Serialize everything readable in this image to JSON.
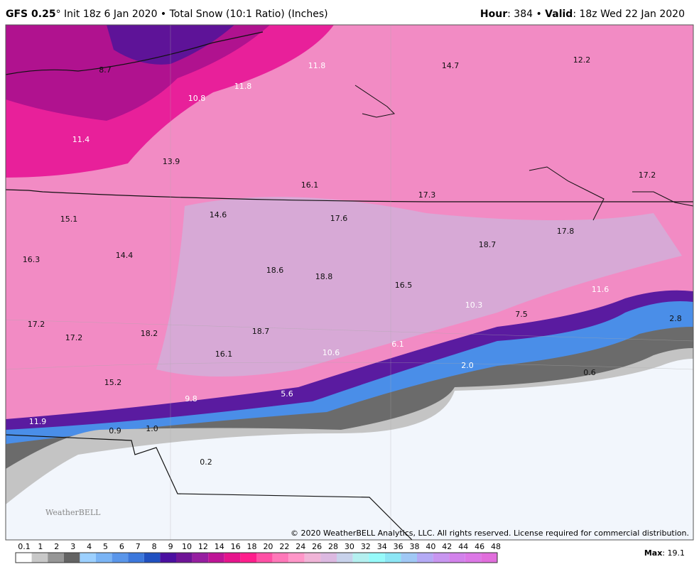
{
  "header": {
    "model": "GFS 0.25",
    "title_rest": "° Init 18z 6 Jan 2020 • Total Snow (10:1 Ratio) (Inches)",
    "hour_label": "Hour",
    "hour_value": ": 384 • ",
    "valid_label": "Valid",
    "valid_value": ": 18z Wed 22 Jan 2020"
  },
  "map": {
    "labels": [
      "8.7",
      "11.8",
      "14.7",
      "12.2",
      "10.8",
      "11.8",
      "11.4",
      "13.9",
      "16.1",
      "17.3",
      "17.2",
      "14.6",
      "17.6",
      "15.1",
      "17.8",
      "18.7",
      "16.3",
      "14.4",
      "18.6",
      "18.8",
      "16.5",
      "11.6",
      "10.3",
      "7.5",
      "2.8",
      "17.2",
      "17.2",
      "18.2",
      "18.7",
      "16.1",
      "10.6",
      "6.1",
      "2.0",
      "0.6",
      "15.2",
      "9.8",
      "5.6",
      "11.9",
      "0.9",
      "1.0",
      "0.2"
    ],
    "copyright": "© 2020 WeatherBELL Analytics, LLC. All rights reserved. License required for commercial distribution.",
    "logo": "WeatherBELL"
  },
  "colorbar": {
    "labels": [
      "0.1",
      "1",
      "2",
      "3",
      "4",
      "5",
      "6",
      "7",
      "8",
      "9",
      "10",
      "12",
      "14",
      "16",
      "18",
      "20",
      "22",
      "24",
      "26",
      "28",
      "30",
      "32",
      "34",
      "36",
      "38",
      "40",
      "42",
      "44",
      "46",
      "48"
    ],
    "colors": [
      "#ffffff",
      "#c8c8c8",
      "#969696",
      "#646464",
      "#9cd0ff",
      "#7ab4f5",
      "#5a96ea",
      "#3c78dc",
      "#2050c0",
      "#4b0fa0",
      "#6e1496",
      "#961ea0",
      "#be1496",
      "#e6148c",
      "#ff1e8c",
      "#ff50a5",
      "#ff78b9",
      "#ff96c8",
      "#f0b4d7",
      "#dcb9e1",
      "#c8d2eb",
      "#b4f0f0",
      "#96fafa",
      "#8ce6f5",
      "#a0c8f5",
      "#b4aaf5",
      "#c896f0",
      "#d282eb",
      "#dc78e6",
      "#e16edc"
    ]
  },
  "max": {
    "label": "Max",
    "value": ": 19.1"
  }
}
